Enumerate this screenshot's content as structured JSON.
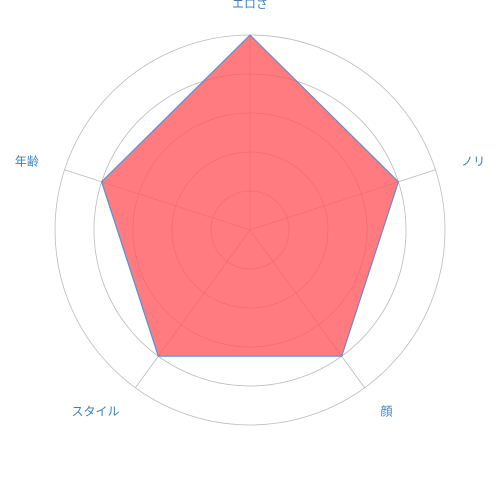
{
  "chart_data": {
    "type": "radar",
    "categories": [
      "エロさ",
      "ノリ",
      "顔",
      "スタイル",
      "年齢"
    ],
    "series": [
      {
        "values": [
          5,
          4,
          4,
          4,
          4
        ]
      }
    ],
    "rlim": [
      0,
      5
    ],
    "rings": [
      1,
      2,
      3,
      4,
      5
    ],
    "grid": true,
    "legend": "none",
    "colors": {
      "fill": "#ff5a5f",
      "fill_opacity": 0.8,
      "stroke": "#5b8fd6",
      "grid": "#bbbbbb",
      "label": "#3a7fc1"
    }
  }
}
